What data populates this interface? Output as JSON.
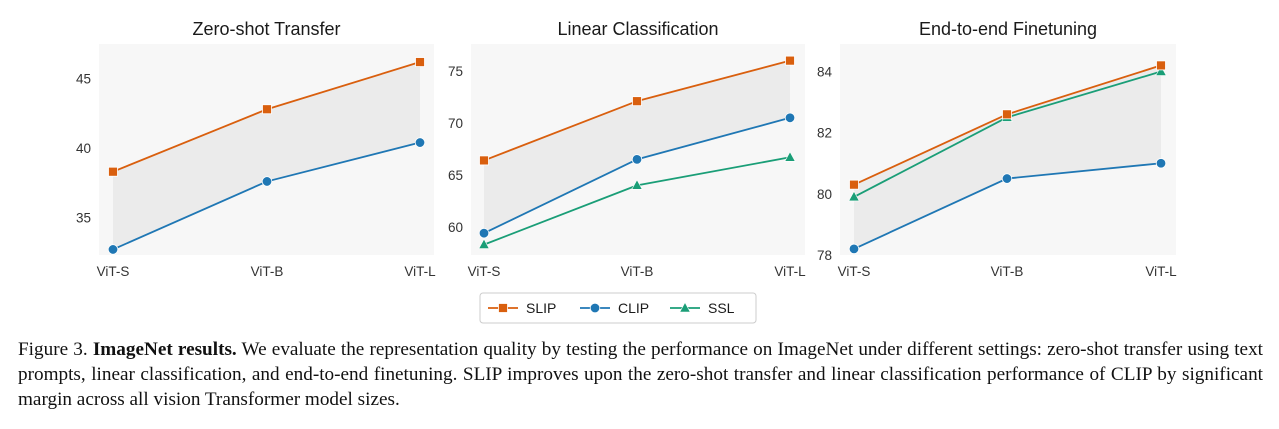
{
  "colors": {
    "SLIP": "#d95f0e",
    "CLIP": "#1f77b4",
    "SSL": "#1a9e77",
    "plot_bg": "#f7f7f7",
    "band": "#ebebeb"
  },
  "chart_data": [
    {
      "type": "line",
      "title": "Zero-shot Transfer",
      "categories": [
        "ViT-S",
        "ViT-B",
        "ViT-L"
      ],
      "ylim": [
        32.3,
        47.5
      ],
      "yticks": [
        35,
        40,
        45
      ],
      "series": [
        {
          "name": "SLIP",
          "values": [
            38.3,
            42.8,
            46.2
          ]
        },
        {
          "name": "CLIP",
          "values": [
            32.7,
            37.6,
            40.4
          ]
        }
      ]
    },
    {
      "type": "line",
      "title": "Linear Classification",
      "categories": [
        "ViT-S",
        "ViT-B",
        "ViT-L"
      ],
      "ylim": [
        57.3,
        77.6
      ],
      "yticks": [
        60,
        65,
        70,
        75
      ],
      "series": [
        {
          "name": "SLIP",
          "values": [
            66.4,
            72.1,
            76.0
          ]
        },
        {
          "name": "CLIP",
          "values": [
            59.4,
            66.5,
            70.5
          ]
        },
        {
          "name": "SSL",
          "values": [
            58.3,
            64.0,
            66.7
          ]
        }
      ]
    },
    {
      "type": "line",
      "title": "End-to-end Finetuning",
      "categories": [
        "ViT-S",
        "ViT-B",
        "ViT-L"
      ],
      "ylim": [
        78.0,
        84.9
      ],
      "yticks": [
        78,
        80,
        82,
        84
      ],
      "series": [
        {
          "name": "SLIP",
          "values": [
            80.3,
            82.6,
            84.2
          ]
        },
        {
          "name": "CLIP",
          "values": [
            78.2,
            80.5,
            81.0
          ]
        },
        {
          "name": "SSL",
          "values": [
            79.9,
            82.5,
            84.0
          ]
        }
      ]
    }
  ],
  "legend": {
    "entries": [
      {
        "label": "SLIP",
        "marker": "square"
      },
      {
        "label": "CLIP",
        "marker": "circle"
      },
      {
        "label": "SSL",
        "marker": "triangle"
      }
    ]
  },
  "caption": {
    "label": "Figure 3.",
    "bold_title": "ImageNet results.",
    "text": "We evaluate the representation quality by testing the performance on ImageNet under different settings: zero-shot transfer using text prompts, linear classification, and end-to-end finetuning. SLIP improves upon the zero-shot transfer and linear classification performance of CLIP by significant margin across all vision Transformer model sizes."
  }
}
